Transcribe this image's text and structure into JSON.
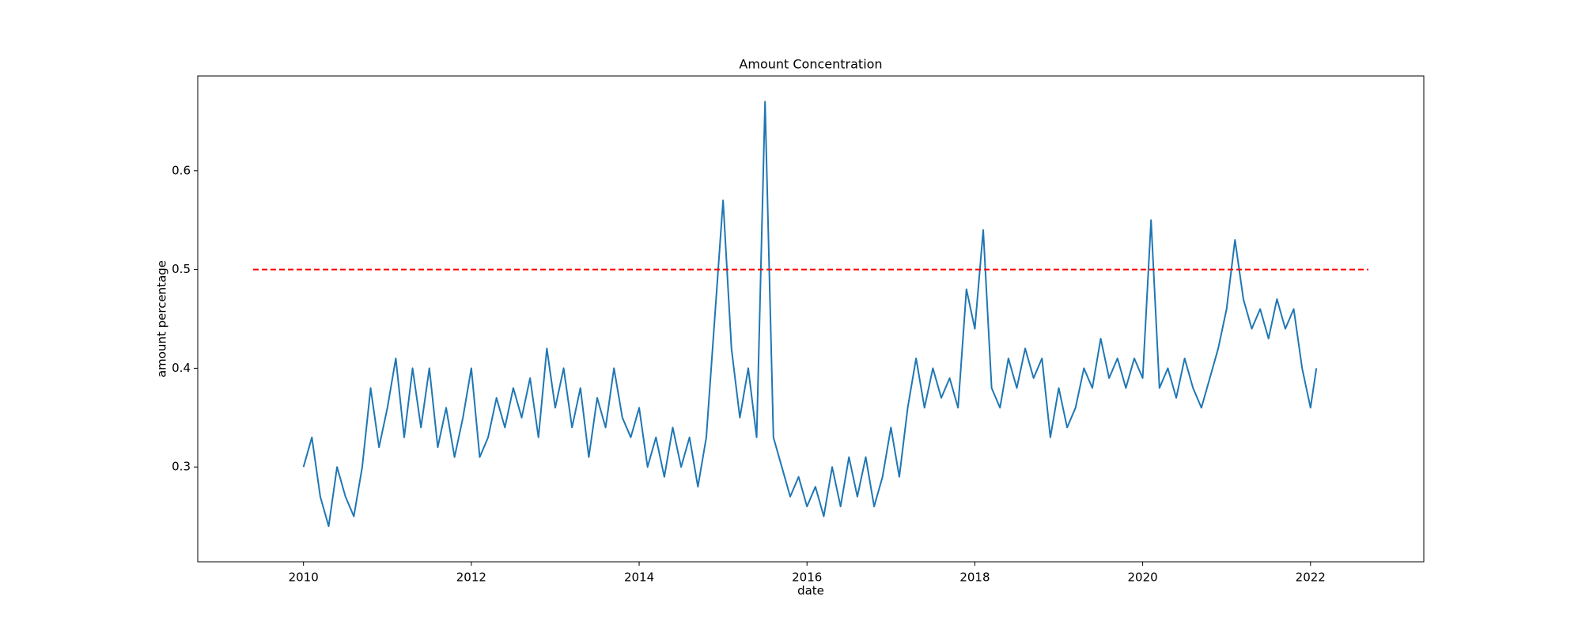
{
  "chart_data": {
    "type": "line",
    "title": "Amount Concentration",
    "xlabel": "date",
    "ylabel": "amount percentage",
    "xlim": [
      2008.74,
      2023.35
    ],
    "ylim": [
      0.204,
      0.696
    ],
    "xticks": [
      2010,
      2012,
      2014,
      2016,
      2018,
      2020,
      2022
    ],
    "yticks": [
      0.3,
      0.4,
      0.5,
      0.6
    ],
    "grid": false,
    "series": [
      {
        "color": "#1f77b4",
        "linestyle": "solid",
        "x": [
          2010.0,
          2010.1,
          2010.2,
          2010.3,
          2010.4,
          2010.5,
          2010.6,
          2010.7,
          2010.8,
          2010.9,
          2011.0,
          2011.1,
          2011.2,
          2011.3,
          2011.4,
          2011.5,
          2011.6,
          2011.7,
          2011.8,
          2011.9,
          2012.0,
          2012.1,
          2012.2,
          2012.3,
          2012.4,
          2012.5,
          2012.6,
          2012.7,
          2012.8,
          2012.9,
          2013.0,
          2013.1,
          2013.2,
          2013.3,
          2013.4,
          2013.5,
          2013.6,
          2013.7,
          2013.8,
          2013.9,
          2014.0,
          2014.1,
          2014.2,
          2014.3,
          2014.4,
          2014.5,
          2014.6,
          2014.7,
          2014.8,
          2014.9,
          2015.0,
          2015.1,
          2015.2,
          2015.3,
          2015.4,
          2015.5,
          2015.6,
          2015.7,
          2015.8,
          2015.9,
          2016.0,
          2016.1,
          2016.2,
          2016.3,
          2016.4,
          2016.5,
          2016.6,
          2016.7,
          2016.8,
          2016.9,
          2017.0,
          2017.1,
          2017.2,
          2017.3,
          2017.4,
          2017.5,
          2017.6,
          2017.7,
          2017.8,
          2017.9,
          2018.0,
          2018.1,
          2018.2,
          2018.3,
          2018.4,
          2018.5,
          2018.6,
          2018.7,
          2018.8,
          2018.9,
          2019.0,
          2019.1,
          2019.2,
          2019.3,
          2019.4,
          2019.5,
          2019.6,
          2019.7,
          2019.8,
          2019.9,
          2020.0,
          2020.1,
          2020.2,
          2020.3,
          2020.4,
          2020.5,
          2020.6,
          2020.7,
          2020.8,
          2020.9,
          2021.0,
          2021.1,
          2021.2,
          2021.3,
          2021.4,
          2021.5,
          2021.6,
          2021.7,
          2021.8,
          2021.9,
          2022.0,
          2022.07
        ],
        "values": [
          0.3,
          0.33,
          0.27,
          0.24,
          0.3,
          0.27,
          0.25,
          0.3,
          0.38,
          0.32,
          0.36,
          0.41,
          0.33,
          0.4,
          0.34,
          0.4,
          0.32,
          0.36,
          0.31,
          0.35,
          0.4,
          0.31,
          0.33,
          0.37,
          0.34,
          0.38,
          0.35,
          0.39,
          0.33,
          0.42,
          0.36,
          0.4,
          0.34,
          0.38,
          0.31,
          0.37,
          0.34,
          0.4,
          0.35,
          0.33,
          0.36,
          0.3,
          0.33,
          0.29,
          0.34,
          0.3,
          0.33,
          0.28,
          0.33,
          0.45,
          0.57,
          0.42,
          0.35,
          0.4,
          0.33,
          0.67,
          0.33,
          0.3,
          0.27,
          0.29,
          0.26,
          0.28,
          0.25,
          0.3,
          0.26,
          0.31,
          0.27,
          0.31,
          0.26,
          0.29,
          0.34,
          0.29,
          0.36,
          0.41,
          0.36,
          0.4,
          0.37,
          0.39,
          0.36,
          0.48,
          0.44,
          0.54,
          0.38,
          0.36,
          0.41,
          0.38,
          0.42,
          0.39,
          0.41,
          0.33,
          0.38,
          0.34,
          0.36,
          0.4,
          0.38,
          0.43,
          0.39,
          0.41,
          0.38,
          0.41,
          0.39,
          0.55,
          0.38,
          0.4,
          0.37,
          0.41,
          0.38,
          0.36,
          0.39,
          0.42,
          0.46,
          0.53,
          0.47,
          0.44,
          0.46,
          0.43,
          0.47,
          0.44,
          0.46,
          0.4,
          0.36,
          0.4
        ]
      },
      {
        "color": "#ff0000",
        "linestyle": "dashed",
        "x": [
          2009.4,
          2022.69
        ],
        "values": [
          0.5,
          0.5
        ]
      }
    ]
  }
}
